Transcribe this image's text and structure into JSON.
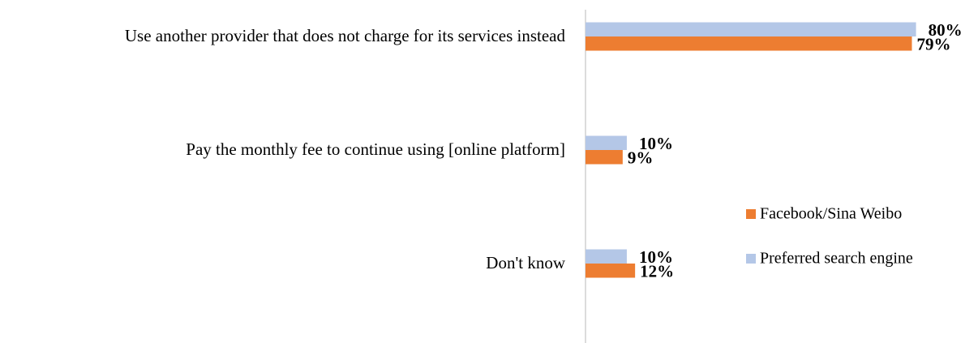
{
  "chart_data": {
    "type": "hbar",
    "categories": [
      "Use another provider that does not charge for its services instead",
      "Pay the monthly fee to continue using [online platform]",
      "Don't know"
    ],
    "series": [
      {
        "name": "Preferred search engine",
        "color": "#b4c7e7",
        "values": [
          80,
          10,
          10
        ],
        "value_labels": [
          "80%",
          "10%",
          "10%"
        ]
      },
      {
        "name": "Facebook/Sina Weibo",
        "color": "#ed7d31",
        "values": [
          79,
          9,
          12
        ],
        "value_labels": [
          "79%",
          "9%",
          "12%"
        ]
      }
    ],
    "xlim": [
      0,
      95
    ],
    "legend": "lower right"
  }
}
